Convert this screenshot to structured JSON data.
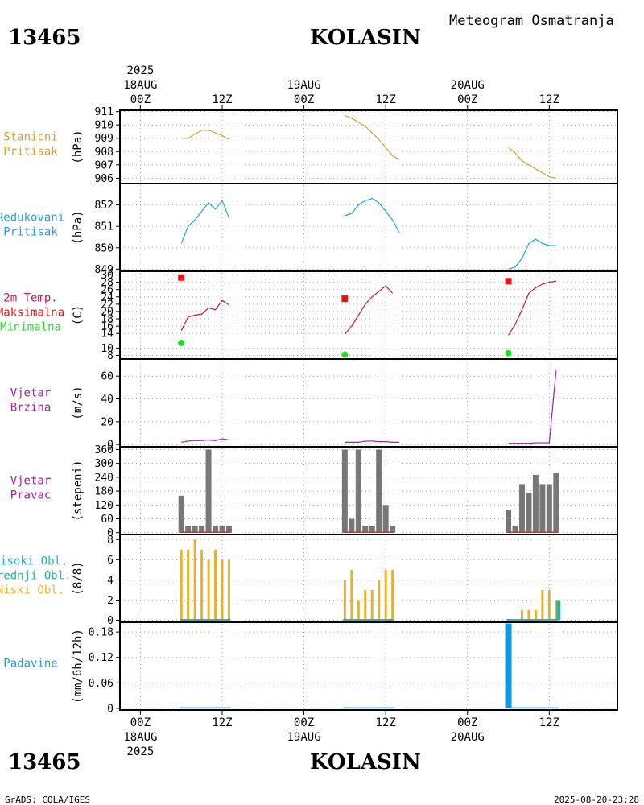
{
  "header": {
    "station_id": "13465",
    "station_name": "KOLASIN",
    "title": "Meteogram Osmatranja",
    "credit": "GrADS: COLA/IGES",
    "timestamp": "2025-08-20-23:28"
  },
  "time_axis": {
    "year": "2025",
    "days": [
      "18AUG",
      "19AUG",
      "20AUG"
    ],
    "hours": [
      "00Z",
      "12Z"
    ],
    "ticks": [
      {
        "t": 0,
        "label": "00Z",
        "day": "18AUG",
        "year": "2025"
      },
      {
        "t": 12,
        "label": "12Z"
      },
      {
        "t": 24,
        "label": "00Z",
        "day": "19AUG"
      },
      {
        "t": 36,
        "label": "12Z"
      },
      {
        "t": 48,
        "label": "00Z",
        "day": "20AUG"
      },
      {
        "t": 60,
        "label": "12Z"
      }
    ],
    "xlim": [
      -3,
      70
    ]
  },
  "colors": {
    "pressure": "#d9a02c",
    "reduced": "#1ba3d9",
    "temp": "#cc1155",
    "tmax": "#ee1111",
    "tmin": "#22dd22",
    "wind": "#9922aa",
    "winddir_bar": "#777777",
    "winddir_base": "#cc3333",
    "cloud_low": "#e8b030",
    "cloud_mid": "#22b8a0",
    "cloud_high": "#1bb0c8",
    "precip": "#1199dd",
    "frame": "#000000",
    "grid": "#aaaaaa"
  },
  "chart_data": [
    {
      "id": "station_pressure",
      "type": "line",
      "label_lines": [
        "Stanicni",
        "Pritisak"
      ],
      "label_color": "#d9a02c",
      "unit": "(hPa)",
      "ylim": [
        905.6,
        911.1
      ],
      "yticks": [
        906,
        907,
        908,
        909,
        910,
        911
      ],
      "series": [
        {
          "name": "Stanicni Pritisak",
          "color": "#d9a02c",
          "segments": [
            [
              [
                6,
                909.0
              ],
              [
                7,
                909.0
              ],
              [
                8,
                909.3
              ],
              [
                9,
                909.6
              ],
              [
                10,
                909.6
              ],
              [
                11,
                909.4
              ],
              [
                12,
                909.2
              ],
              [
                13,
                908.9
              ]
            ],
            [
              [
                30,
                910.7
              ],
              [
                31,
                910.5
              ],
              [
                32,
                910.2
              ],
              [
                33,
                909.9
              ],
              [
                34,
                909.4
              ],
              [
                35,
                908.9
              ],
              [
                36,
                908.3
              ],
              [
                37,
                907.7
              ],
              [
                38,
                907.4
              ]
            ],
            [
              [
                54,
                908.3
              ],
              [
                55,
                907.9
              ],
              [
                56,
                907.3
              ],
              [
                57,
                907.0
              ],
              [
                58,
                906.7
              ],
              [
                59,
                906.4
              ],
              [
                60,
                906.1
              ],
              [
                61,
                906.0
              ]
            ]
          ]
        }
      ]
    },
    {
      "id": "reduced_pressure",
      "type": "line",
      "label_lines": [
        "Redukovani",
        "Pritisak"
      ],
      "label_color": "#1ba3d9",
      "unit": "(hPa)",
      "ylim": [
        848.9,
        853.0
      ],
      "yticks": [
        849,
        850,
        851,
        852
      ],
      "series": [
        {
          "name": "Redukovani Pritisak",
          "color": "#1ba3d9",
          "segments": [
            [
              [
                6,
                850.2
              ],
              [
                7,
                851.0
              ],
              [
                8,
                851.3
              ],
              [
                9,
                851.7
              ],
              [
                10,
                852.1
              ],
              [
                11,
                851.8
              ],
              [
                12,
                852.2
              ],
              [
                13,
                851.4
              ]
            ],
            [
              [
                30,
                851.5
              ],
              [
                31,
                851.6
              ],
              [
                32,
                852.0
              ],
              [
                33,
                852.2
              ],
              [
                34,
                852.3
              ],
              [
                35,
                852.1
              ],
              [
                36,
                851.7
              ],
              [
                37,
                851.3
              ],
              [
                38,
                850.7
              ]
            ],
            [
              [
                54,
                849.0
              ],
              [
                55,
                849.1
              ],
              [
                56,
                849.5
              ],
              [
                57,
                850.2
              ],
              [
                58,
                850.4
              ],
              [
                59,
                850.2
              ],
              [
                60,
                850.1
              ],
              [
                61,
                850.1
              ]
            ]
          ]
        }
      ]
    },
    {
      "id": "temperature",
      "type": "line+scatter",
      "label_lines": [
        "2m Temp.",
        "Maksimalna",
        "Minimalna"
      ],
      "label_colors": [
        "#cc1155",
        "#ee1111",
        "#22dd22"
      ],
      "unit": "(C)",
      "ylim": [
        7,
        31
      ],
      "yticks": [
        8,
        10,
        14,
        16,
        18,
        20,
        22,
        24,
        26,
        28,
        30
      ],
      "series": [
        {
          "name": "2m Temp.",
          "color": "#cc1155",
          "segments": [
            [
              [
                6,
                14.8
              ],
              [
                7,
                18.5
              ],
              [
                8,
                19.0
              ],
              [
                9,
                19.3
              ],
              [
                10,
                21.0
              ],
              [
                11,
                20.5
              ],
              [
                12,
                23.0
              ],
              [
                13,
                21.8
              ]
            ],
            [
              [
                30,
                13.8
              ],
              [
                31,
                16.0
              ],
              [
                32,
                19.0
              ],
              [
                33,
                22.0
              ],
              [
                34,
                24.0
              ],
              [
                35,
                25.5
              ],
              [
                36,
                27.0
              ],
              [
                37,
                25.0
              ]
            ],
            [
              [
                54,
                13.5
              ],
              [
                55,
                16.5
              ],
              [
                56,
                20.5
              ],
              [
                57,
                25.0
              ],
              [
                58,
                26.5
              ],
              [
                59,
                27.5
              ],
              [
                60,
                28.0
              ],
              [
                61,
                28.3
              ]
            ]
          ]
        },
        {
          "name": "Maksimalna",
          "color": "#ee1111",
          "marker": "square",
          "points": [
            [
              6,
              29.3
            ],
            [
              30,
              23.5
            ],
            [
              54,
              28.3
            ]
          ]
        },
        {
          "name": "Minimalna",
          "color": "#22dd22",
          "marker": "circle",
          "points": [
            [
              6,
              11.4
            ],
            [
              30,
              8.2
            ],
            [
              54,
              8.6
            ]
          ]
        }
      ]
    },
    {
      "id": "wind_speed",
      "type": "line",
      "label_lines": [
        "Vjetar",
        "Brzina"
      ],
      "label_color": "#9922aa",
      "unit": "(m/s)",
      "ylim": [
        -2,
        75
      ],
      "yticks": [
        0,
        20,
        40,
        60
      ],
      "series": [
        {
          "name": "Vjetar Brzina",
          "color": "#9922aa",
          "segments": [
            [
              [
                6,
                2.0
              ],
              [
                7,
                3.0
              ],
              [
                8,
                3.5
              ],
              [
                9,
                3.5
              ],
              [
                10,
                4.0
              ],
              [
                11,
                3.5
              ],
              [
                12,
                5.0
              ],
              [
                13,
                4.0
              ]
            ],
            [
              [
                30,
                2.0
              ],
              [
                31,
                2.0
              ],
              [
                32,
                2.0
              ],
              [
                33,
                3.0
              ],
              [
                34,
                3.0
              ],
              [
                35,
                2.5
              ],
              [
                36,
                2.5
              ],
              [
                37,
                2.0
              ],
              [
                38,
                2.0
              ]
            ],
            [
              [
                54,
                1.0
              ],
              [
                55,
                1.0
              ],
              [
                56,
                1.0
              ],
              [
                57,
                1.0
              ],
              [
                58,
                1.5
              ],
              [
                59,
                1.5
              ],
              [
                60,
                1.5
              ],
              [
                61,
                65.0
              ]
            ]
          ]
        }
      ]
    },
    {
      "id": "wind_direction",
      "type": "bar",
      "label_lines": [
        "Vjetar",
        "Pravac"
      ],
      "label_color": "#9922aa",
      "unit": "(stepeni)",
      "ylim": [
        -8,
        372
      ],
      "yticks": [
        0,
        60,
        120,
        180,
        240,
        300,
        360
      ],
      "series": [
        {
          "name": "Vjetar Pravac",
          "color": "#777777",
          "points": [
            [
              6,
              160
            ],
            [
              7,
              30
            ],
            [
              8,
              30
            ],
            [
              9,
              30
            ],
            [
              10,
              360
            ],
            [
              11,
              30
            ],
            [
              12,
              30
            ],
            [
              13,
              30
            ],
            [
              30,
              360
            ],
            [
              31,
              60
            ],
            [
              32,
              360
            ],
            [
              33,
              30
            ],
            [
              34,
              30
            ],
            [
              35,
              360
            ],
            [
              36,
              120
            ],
            [
              37,
              30
            ],
            [
              54,
              100
            ],
            [
              55,
              30
            ],
            [
              56,
              210
            ],
            [
              57,
              170
            ],
            [
              58,
              250
            ],
            [
              59,
              210
            ],
            [
              60,
              210
            ],
            [
              61,
              260
            ]
          ]
        }
      ]
    },
    {
      "id": "cloud_cover",
      "type": "bar",
      "label_lines": [
        "Visoki Obl.",
        "Srednji Obl.",
        "Niski Obl."
      ],
      "label_colors": [
        "#1bb0c8",
        "#22b8a0",
        "#e8b030"
      ],
      "unit": "(8/8)",
      "ylim": [
        -0.2,
        8.5
      ],
      "yticks": [
        0,
        2,
        4,
        6,
        8
      ],
      "series": [
        {
          "name": "Niski Obl.",
          "color": "#e8b030",
          "points": [
            [
              6,
              7
            ],
            [
              7,
              7
            ],
            [
              8,
              8
            ],
            [
              9,
              7
            ],
            [
              10,
              6
            ],
            [
              11,
              7
            ],
            [
              12,
              6
            ],
            [
              13,
              6
            ],
            [
              30,
              4
            ],
            [
              31,
              5
            ],
            [
              32,
              2
            ],
            [
              33,
              3
            ],
            [
              34,
              3
            ],
            [
              35,
              4
            ],
            [
              36,
              5
            ],
            [
              37,
              5
            ],
            [
              54,
              0
            ],
            [
              55,
              0
            ],
            [
              56,
              1
            ],
            [
              57,
              1
            ],
            [
              58,
              1
            ],
            [
              59,
              3
            ],
            [
              60,
              3
            ],
            [
              61,
              2
            ]
          ]
        },
        {
          "name": "Srednji Obl.",
          "color": "#22b8a0",
          "points": [
            [
              61,
              2
            ]
          ]
        },
        {
          "name": "Visoki Obl.",
          "color": "#1bb0c8",
          "points": [
            [
              61,
              2
            ]
          ]
        }
      ]
    },
    {
      "id": "precipitation",
      "type": "bar",
      "label_lines": [
        "Padavine"
      ],
      "label_color": "#1ba3d9",
      "unit": "(mm/6h/12h)",
      "ylim": [
        -0.004,
        0.203
      ],
      "yticks": [
        0,
        0.06,
        0.12,
        0.18
      ],
      "ytick_labels": [
        "0",
        "0.06",
        "0.12",
        "0.18"
      ],
      "series": [
        {
          "name": "Padavine",
          "color": "#1199dd",
          "points": [
            [
              6,
              0
            ],
            [
              7,
              0
            ],
            [
              8,
              0
            ],
            [
              9,
              0
            ],
            [
              10,
              0
            ],
            [
              11,
              0
            ],
            [
              12,
              0
            ],
            [
              13,
              0
            ],
            [
              30,
              0
            ],
            [
              31,
              0
            ],
            [
              32,
              0
            ],
            [
              33,
              0
            ],
            [
              34,
              0
            ],
            [
              35,
              0
            ],
            [
              36,
              0
            ],
            [
              37,
              0
            ],
            [
              54,
              0.2
            ],
            [
              55,
              0
            ],
            [
              56,
              0
            ],
            [
              57,
              0
            ],
            [
              58,
              0
            ],
            [
              59,
              0
            ],
            [
              60,
              0
            ],
            [
              61,
              0
            ]
          ]
        }
      ]
    }
  ]
}
